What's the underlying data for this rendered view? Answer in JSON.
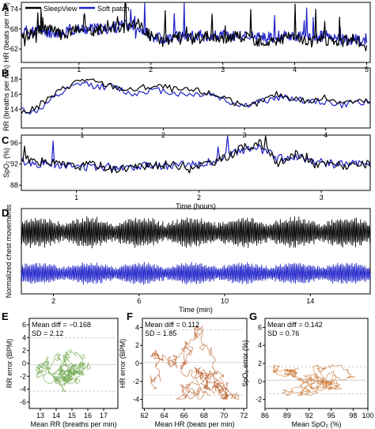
{
  "colors": {
    "sleepview": "#000000",
    "softpatch": "#1f22c8",
    "bland_E": "#5f9e3a",
    "bland_F": "#b5541a",
    "bland_G": "#c96a1c",
    "refline": "#c8c8c8"
  },
  "chart_data": [
    {
      "panel": "A",
      "type": "line",
      "legend": {
        "position": "top-left",
        "entries": [
          "SleepView",
          "Soft patch"
        ]
      },
      "ylabel": "HR (beats per min)",
      "xlabel": "",
      "xlim": [
        0.2,
        5.05
      ],
      "ylim": [
        58,
        76
      ],
      "yticks": [
        62,
        68,
        74
      ],
      "xticks": [
        1,
        2,
        3,
        4,
        5
      ],
      "series": [
        {
          "name": "SleepView",
          "x": [
            0.2,
            0.4,
            0.6,
            0.8,
            1.0,
            1.2,
            1.4,
            1.6,
            1.8,
            2.0,
            2.2,
            2.4,
            2.6,
            2.8,
            3.0,
            3.2,
            3.4,
            3.6,
            3.8,
            4.0,
            4.2,
            4.4,
            4.6,
            4.8,
            5.0
          ],
          "y": [
            66,
            67,
            68,
            66,
            68,
            67,
            69,
            68,
            70,
            66,
            64,
            66,
            65,
            66,
            65,
            66,
            65,
            64,
            65,
            66,
            64,
            65,
            64,
            65,
            63
          ]
        },
        {
          "name": "Soft patch",
          "x": [
            0.2,
            0.4,
            0.6,
            0.8,
            1.0,
            1.2,
            1.4,
            1.6,
            1.8,
            2.0,
            2.2,
            2.4,
            2.6,
            2.8,
            3.0,
            3.2,
            3.4,
            3.6,
            3.8,
            4.0,
            4.2,
            4.4,
            4.6,
            4.8,
            5.0
          ],
          "y": [
            67,
            68,
            67,
            67,
            68,
            68,
            68,
            69,
            69,
            66,
            65,
            66,
            66,
            66,
            66,
            66,
            66,
            65,
            66,
            66,
            65,
            66,
            65,
            65,
            64
          ]
        }
      ]
    },
    {
      "panel": "B",
      "type": "line",
      "ylabel": "RR (breaths per min)",
      "xlabel": "",
      "xlim": [
        0.25,
        4.55
      ],
      "ylim": [
        11.5,
        19.5
      ],
      "yticks": [
        14,
        16,
        18
      ],
      "xticks": [
        1,
        2,
        3,
        4
      ],
      "series": [
        {
          "name": "SleepView",
          "x": [
            0.25,
            0.4,
            0.6,
            0.8,
            1.0,
            1.2,
            1.4,
            1.6,
            1.8,
            2.0,
            2.2,
            2.4,
            2.6,
            2.8,
            3.0,
            3.2,
            3.4,
            3.6,
            3.8,
            4.0,
            4.2,
            4.4,
            4.55
          ],
          "y": [
            13.5,
            14,
            15.5,
            17,
            18,
            17.5,
            17,
            16.5,
            17,
            17,
            16.5,
            16.5,
            16,
            15.5,
            14,
            15,
            16,
            15.5,
            15,
            15.5,
            15,
            15,
            15
          ]
        },
        {
          "name": "Soft patch",
          "x": [
            0.25,
            0.4,
            0.6,
            0.8,
            1.0,
            1.2,
            1.4,
            1.6,
            1.8,
            2.0,
            2.2,
            2.4,
            2.6,
            2.8,
            3.0,
            3.2,
            3.4,
            3.6,
            3.8,
            4.0,
            4.2,
            4.4,
            4.55
          ],
          "y": [
            14,
            13.5,
            15,
            16.5,
            17.5,
            17,
            17,
            16,
            16.5,
            16.5,
            16,
            16,
            16,
            15,
            14.5,
            15,
            15.5,
            15.5,
            15,
            15,
            14.5,
            15,
            15
          ]
        }
      ]
    },
    {
      "panel": "C",
      "type": "line",
      "ylabel": "SpO₂ (%)",
      "xlabel": "Time (hours)",
      "xlim": [
        0.55,
        3.4
      ],
      "ylim": [
        87,
        97.5
      ],
      "yticks": [
        88,
        92,
        96
      ],
      "xticks": [
        1,
        2,
        3
      ],
      "series": [
        {
          "name": "SleepView",
          "x": [
            0.55,
            0.7,
            0.85,
            1.0,
            1.15,
            1.3,
            1.45,
            1.6,
            1.75,
            1.9,
            2.05,
            2.2,
            2.35,
            2.5,
            2.65,
            2.8,
            2.95,
            3.1,
            3.25,
            3.4
          ],
          "y": [
            93,
            92.5,
            92,
            91.5,
            92,
            91,
            91.5,
            91.5,
            92,
            91.5,
            92,
            93,
            95,
            96,
            92,
            94,
            92,
            92,
            91.5,
            92
          ]
        },
        {
          "name": "Soft patch",
          "x": [
            0.55,
            0.7,
            0.85,
            1.0,
            1.15,
            1.3,
            1.45,
            1.6,
            1.75,
            1.9,
            2.05,
            2.2,
            2.35,
            2.5,
            2.65,
            2.8,
            2.95,
            3.1,
            3.25,
            3.4
          ],
          "y": [
            92.5,
            92,
            92,
            91.5,
            91.5,
            91.5,
            91.5,
            92,
            91.5,
            92,
            92,
            93.5,
            94.5,
            95,
            93,
            93.5,
            92.5,
            92,
            92,
            92
          ]
        }
      ]
    },
    {
      "panel": "D",
      "type": "line",
      "ylabel": "Normalized chest movements",
      "xlabel": "Time (min)",
      "xlim": [
        0.5,
        16.8
      ],
      "xticks": [
        2,
        6,
        10,
        14
      ],
      "series": [
        {
          "name": "SleepView"
        },
        {
          "name": "Soft patch"
        }
      ]
    },
    {
      "panel": "E",
      "type": "scatter",
      "xlabel": "Mean RR (breaths per min)",
      "ylabel": "RR error (BPM)",
      "xlim": [
        12.3,
        17.9
      ],
      "ylim": [
        -7,
        7
      ],
      "xticks": [
        13,
        14,
        15,
        16,
        17
      ],
      "yticks": [
        -6,
        -4,
        -2,
        0,
        2,
        4,
        6
      ],
      "mean_diff_label": "Mean diff = −0.168",
      "sd_label": "SD = 2.12",
      "mean_diff": -0.168,
      "sd": 2.12
    },
    {
      "panel": "F",
      "type": "scatter",
      "xlabel": "Mean HR (beats per min)",
      "ylabel": "HR error (BPM)",
      "xlim": [
        61.8,
        72.3
      ],
      "ylim": [
        -5,
        5
      ],
      "xticks": [
        62,
        64,
        66,
        68,
        70,
        72
      ],
      "yticks": [
        -4,
        -2,
        0,
        2,
        4
      ],
      "mean_diff_label": "Mean diff = 0.112",
      "sd_label": "SD = 1.85",
      "mean_diff": 0.112,
      "sd": 1.85
    },
    {
      "panel": "G",
      "type": "scatter",
      "xlabel": "Mean SpO₂ (%)",
      "ylabel": "SpO₂ error (%)",
      "xlim": [
        86,
        100
      ],
      "ylim": [
        -3,
        7
      ],
      "xticks": [
        86,
        89,
        92,
        95,
        98,
        100
      ],
      "yticks": [
        -2,
        0,
        2,
        4,
        6
      ],
      "mean_diff_label": "Mean diff = 0.142",
      "sd_label": "SD = 0.76",
      "mean_diff": 0.142,
      "sd": 0.76
    }
  ]
}
